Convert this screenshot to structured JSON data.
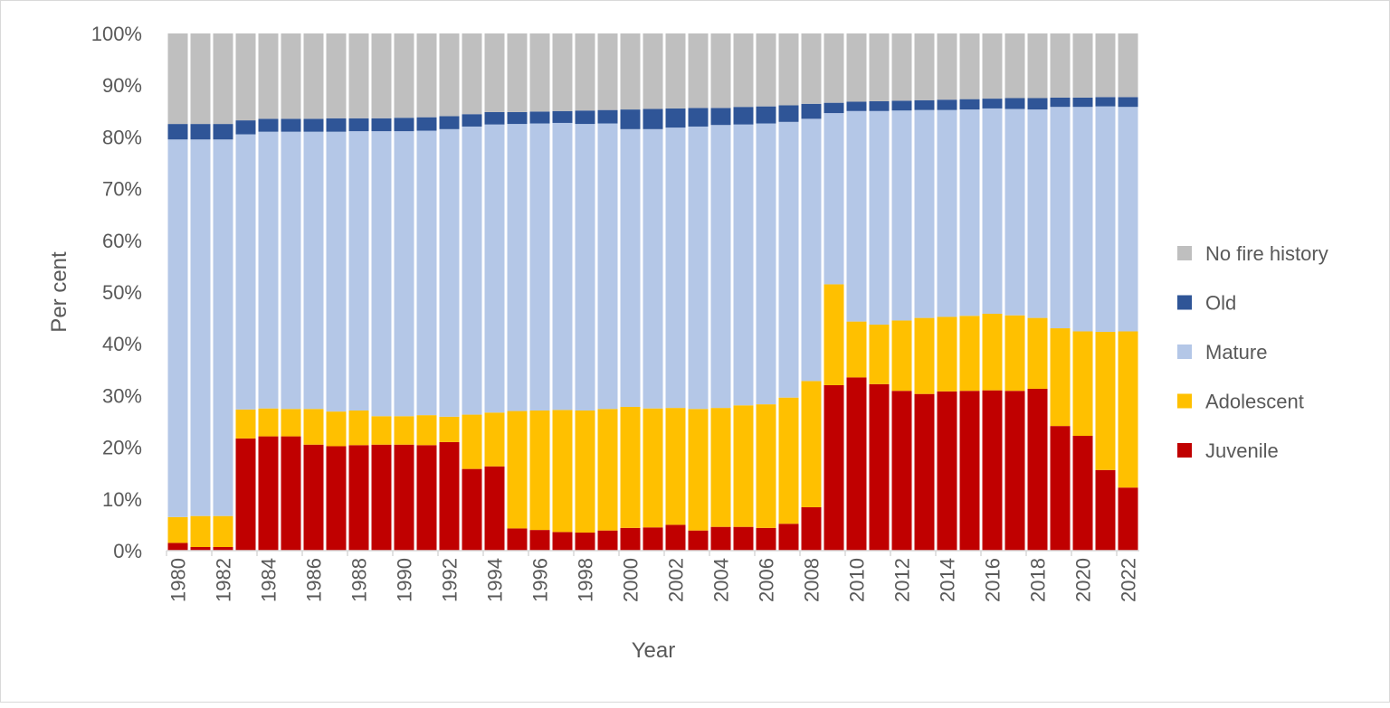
{
  "chart_data": {
    "type": "bar",
    "stacked": true,
    "percent_stacked": true,
    "title": "",
    "xlabel": "Year",
    "ylabel": "Per cent",
    "ylim": [
      0,
      100
    ],
    "y_ticks": [
      "0%",
      "10%",
      "20%",
      "30%",
      "40%",
      "50%",
      "60%",
      "70%",
      "80%",
      "90%",
      "100%"
    ],
    "grid": false,
    "legend_position": "right",
    "categories": [
      1980,
      1981,
      1982,
      1983,
      1984,
      1985,
      1986,
      1987,
      1988,
      1989,
      1990,
      1991,
      1992,
      1993,
      1994,
      1995,
      1996,
      1997,
      1998,
      1999,
      2000,
      2001,
      2002,
      2003,
      2004,
      2005,
      2006,
      2007,
      2008,
      2009,
      2010,
      2011,
      2012,
      2013,
      2014,
      2015,
      2016,
      2017,
      2018,
      2019,
      2020,
      2021,
      2022
    ],
    "x_tick_labels": [
      "1980",
      "1982",
      "1984",
      "1986",
      "1988",
      "1990",
      "1992",
      "1994",
      "1996",
      "1998",
      "2000",
      "2002",
      "2004",
      "2006",
      "2008",
      "2010",
      "2012",
      "2014",
      "2016",
      "2018",
      "2020",
      "2022"
    ],
    "series": [
      {
        "name": "Juvenile",
        "color": "#c00000",
        "values": [
          1.5,
          0.7,
          0.7,
          21.7,
          22.1,
          22.1,
          20.5,
          20.2,
          20.4,
          20.5,
          20.5,
          20.4,
          21.0,
          15.8,
          16.3,
          4.3,
          4.0,
          3.6,
          3.5,
          3.9,
          4.4,
          4.5,
          5.0,
          3.9,
          4.6,
          4.6,
          4.4,
          5.2,
          8.4,
          32.0,
          33.5,
          32.2,
          30.9,
          30.3,
          30.8,
          30.9,
          31.0,
          30.9,
          31.3,
          24.1,
          22.2,
          15.6,
          12.2
        ]
      },
      {
        "name": "Adolescent",
        "color": "#ffc000",
        "values": [
          5.0,
          6.0,
          6.0,
          5.6,
          5.4,
          5.3,
          6.9,
          6.7,
          6.7,
          5.5,
          5.5,
          5.8,
          4.9,
          10.5,
          10.4,
          22.7,
          23.1,
          23.6,
          23.6,
          23.5,
          23.4,
          23.0,
          22.6,
          23.5,
          23.0,
          23.5,
          23.9,
          24.4,
          24.4,
          19.5,
          10.8,
          11.5,
          13.6,
          14.7,
          14.4,
          14.5,
          14.8,
          14.6,
          13.7,
          18.9,
          20.2,
          26.7,
          30.2
        ]
      },
      {
        "name": "Mature",
        "color": "#b4c7e7",
        "values": [
          73.0,
          72.8,
          72.8,
          53.2,
          53.5,
          53.6,
          53.6,
          54.1,
          54.0,
          55.1,
          55.1,
          55.0,
          55.6,
          55.7,
          55.7,
          55.5,
          55.5,
          55.5,
          55.4,
          55.2,
          53.7,
          54.0,
          54.2,
          54.6,
          54.7,
          54.3,
          54.3,
          53.3,
          50.7,
          33.1,
          40.7,
          41.3,
          40.6,
          40.2,
          40.0,
          39.9,
          39.7,
          39.9,
          40.3,
          42.8,
          43.4,
          43.6,
          43.4
        ]
      },
      {
        "name": "Old",
        "color": "#2f5597",
        "values": [
          3.0,
          3.0,
          3.0,
          2.7,
          2.5,
          2.5,
          2.5,
          2.6,
          2.5,
          2.5,
          2.6,
          2.6,
          2.5,
          2.4,
          2.4,
          2.3,
          2.3,
          2.3,
          2.6,
          2.6,
          3.8,
          3.9,
          3.7,
          3.6,
          3.3,
          3.4,
          3.3,
          3.2,
          2.9,
          2.0,
          1.8,
          1.9,
          1.9,
          1.9,
          2.0,
          2.0,
          1.9,
          2.1,
          2.2,
          1.8,
          1.8,
          1.8,
          1.9
        ]
      },
      {
        "name": "No fire history",
        "color": "#bfbfbf",
        "values": [
          17.5,
          17.5,
          17.5,
          16.8,
          16.5,
          16.5,
          16.5,
          16.4,
          16.4,
          16.4,
          16.3,
          16.2,
          16.0,
          15.6,
          15.2,
          15.2,
          15.1,
          15.0,
          14.9,
          14.8,
          14.7,
          14.6,
          14.5,
          14.4,
          14.4,
          14.2,
          14.1,
          13.9,
          13.6,
          13.4,
          13.2,
          13.1,
          13.0,
          12.9,
          12.8,
          12.7,
          12.6,
          12.5,
          12.5,
          12.4,
          12.4,
          12.3,
          12.3
        ]
      }
    ]
  }
}
